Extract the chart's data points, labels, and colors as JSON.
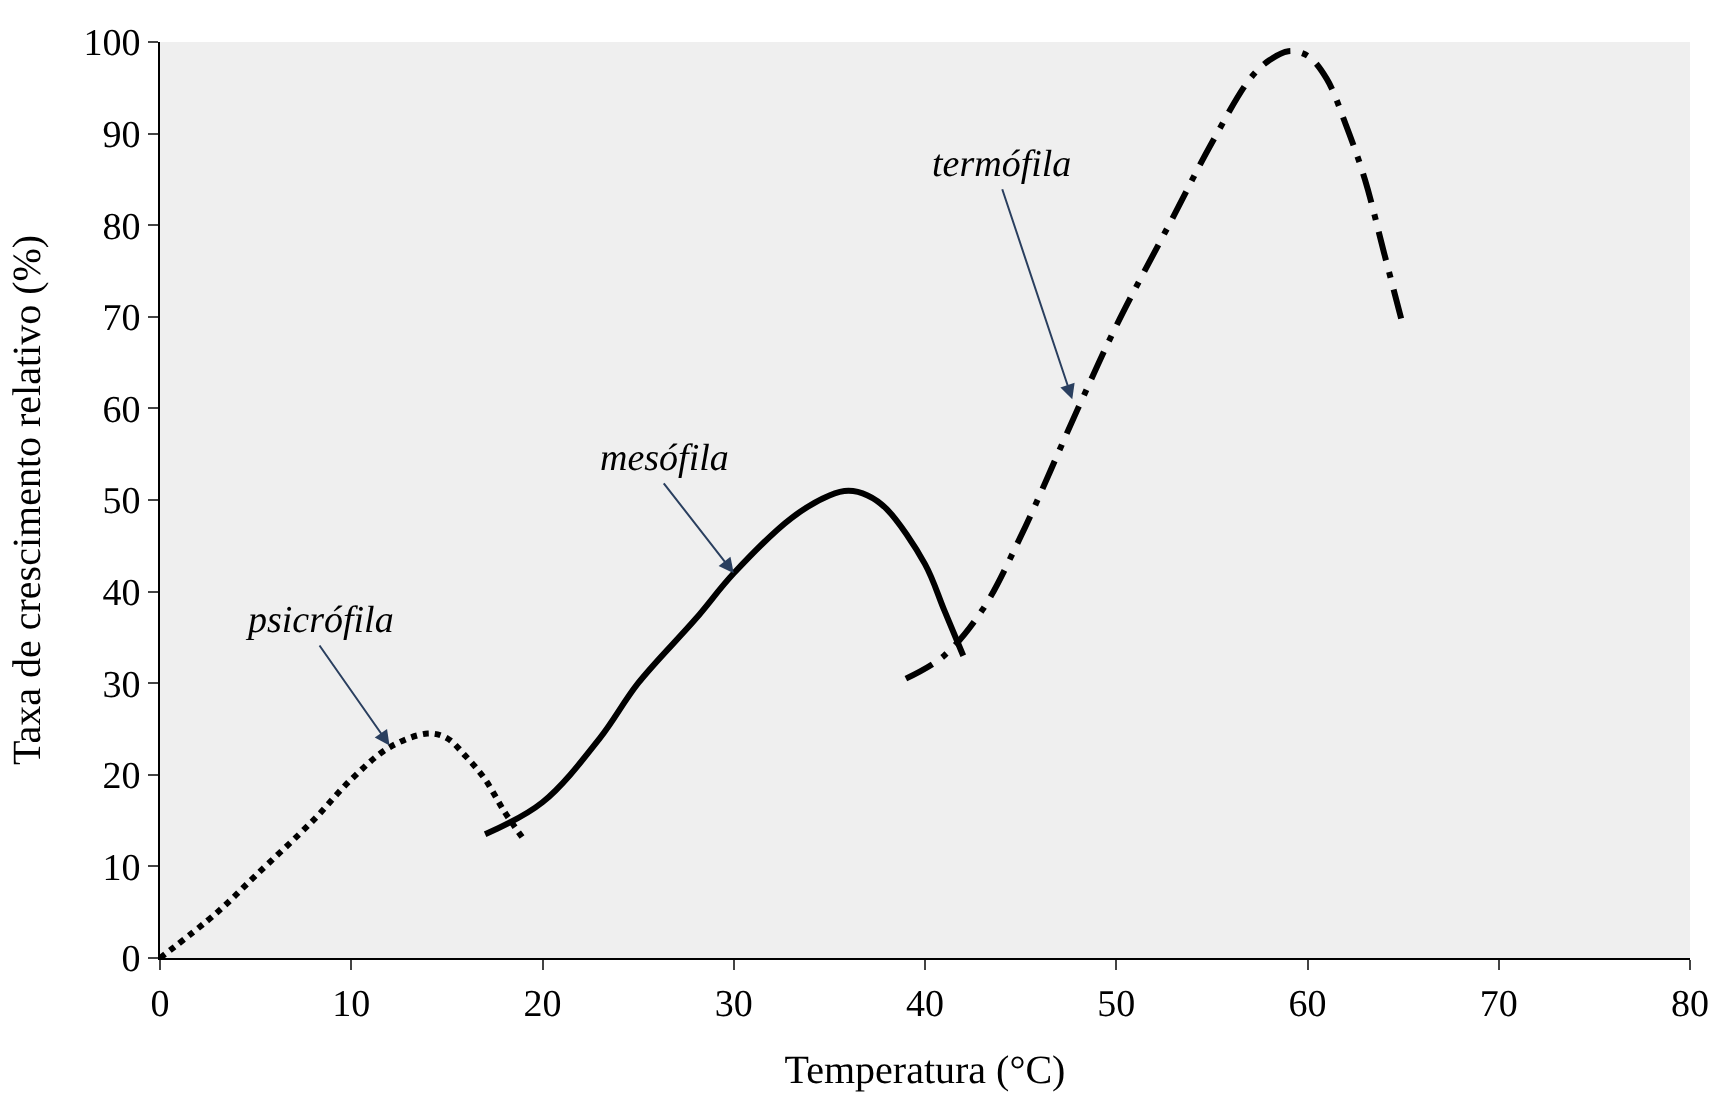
{
  "chart_data": {
    "type": "line",
    "xlabel": "Temperatura (°C)",
    "ylabel": "Taxa de crescimento relativo (%)",
    "xlim": [
      0,
      80
    ],
    "xticks": [
      0,
      10,
      20,
      30,
      40,
      50,
      60,
      70,
      80
    ],
    "ylim": [
      0,
      100
    ],
    "yticks": [
      0,
      10,
      20,
      30,
      40,
      50,
      60,
      70,
      80,
      90,
      100
    ],
    "grid": false,
    "marker": "none",
    "series": [
      {
        "color": "#000000",
        "line_style": "dotted",
        "x": [
          0,
          3,
          5,
          8,
          10,
          12,
          14,
          15,
          16,
          17,
          18,
          19
        ],
        "values": [
          0,
          5,
          9,
          15,
          19.5,
          23,
          24.5,
          24,
          22,
          19.5,
          16,
          13
        ]
      },
      {
        "color": "#000000",
        "line_style": "solid",
        "x": [
          17,
          20,
          23,
          25,
          28,
          30,
          33,
          35,
          36,
          37,
          38,
          40,
          41,
          42
        ],
        "values": [
          13.5,
          17,
          24,
          30,
          37,
          42,
          48,
          50.5,
          51,
          50.5,
          49,
          43,
          38,
          33
        ]
      },
      {
        "color": "#000000",
        "line_style": "dashed",
        "x": [
          39,
          41,
          43,
          45,
          48,
          50,
          53,
          55,
          57,
          58,
          59,
          60,
          61,
          62,
          63,
          64,
          65
        ],
        "values": [
          30.5,
          33,
          38,
          46,
          60,
          69,
          81,
          89,
          96,
          98,
          99,
          98.5,
          96,
          91,
          85,
          77,
          69
        ]
      }
    ],
    "annotations": [
      {
        "text": "psicrófila",
        "x": 12,
        "y": 23.2
      },
      {
        "text": "mesófila",
        "x": 30,
        "y": 42
      },
      {
        "text": "termófila",
        "x": 47.7,
        "y": 61
      }
    ]
  }
}
